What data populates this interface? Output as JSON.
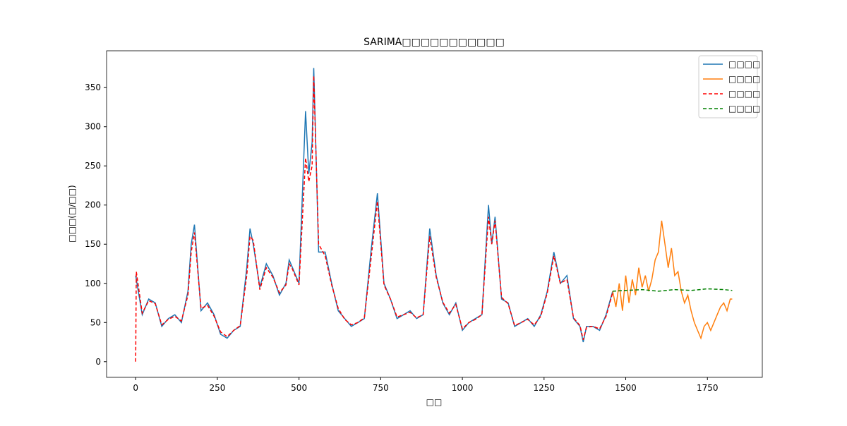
{
  "chart_data": {
    "type": "line",
    "title": "SARIMA□□□□□□□□□□□",
    "x_label": "□□",
    "y_label": "□□□(□/□□)",
    "xlim": [
      -89,
      1918
    ],
    "ylim": [
      -20,
      397
    ],
    "xticks": [
      0,
      250,
      500,
      750,
      1000,
      1250,
      1500,
      1750
    ],
    "yticks": [
      0,
      50,
      100,
      150,
      200,
      250,
      300,
      350
    ],
    "legend": "upper right",
    "series": [
      {
        "name": "□□□□",
        "color": "#1f77b4",
        "dashed": false,
        "x": [
          0,
          20,
          40,
          60,
          80,
          100,
          120,
          140,
          160,
          170,
          180,
          200,
          220,
          240,
          260,
          280,
          300,
          320,
          340,
          350,
          360,
          380,
          400,
          420,
          440,
          460,
          470,
          480,
          500,
          520,
          530,
          540,
          545,
          560,
          580,
          600,
          620,
          640,
          660,
          680,
          700,
          720,
          740,
          760,
          780,
          800,
          820,
          840,
          860,
          880,
          900,
          920,
          940,
          960,
          980,
          1000,
          1020,
          1040,
          1060,
          1080,
          1090,
          1100,
          1120,
          1140,
          1160,
          1180,
          1200,
          1220,
          1240,
          1260,
          1280,
          1300,
          1320,
          1340,
          1360,
          1370,
          1380,
          1400,
          1420,
          1440,
          1460
        ],
        "values": [
          110,
          60,
          80,
          75,
          45,
          55,
          60,
          50,
          90,
          150,
          175,
          65,
          75,
          60,
          35,
          30,
          40,
          45,
          120,
          170,
          150,
          95,
          125,
          110,
          85,
          100,
          130,
          120,
          100,
          320,
          240,
          280,
          375,
          140,
          140,
          100,
          65,
          55,
          45,
          50,
          55,
          140,
          215,
          100,
          80,
          55,
          60,
          65,
          55,
          60,
          170,
          110,
          75,
          60,
          75,
          40,
          50,
          55,
          60,
          200,
          150,
          185,
          80,
          75,
          45,
          50,
          55,
          45,
          60,
          90,
          140,
          100,
          110,
          55,
          45,
          25,
          45,
          45,
          40,
          60,
          90
        ]
      },
      {
        "name": "□□□□",
        "color": "#ff7f0e",
        "dashed": false,
        "x": [
          1460,
          1470,
          1480,
          1490,
          1500,
          1510,
          1520,
          1530,
          1540,
          1550,
          1560,
          1570,
          1580,
          1590,
          1600,
          1610,
          1620,
          1630,
          1640,
          1650,
          1660,
          1670,
          1680,
          1690,
          1700,
          1710,
          1720,
          1730,
          1740,
          1750,
          1760,
          1770,
          1780,
          1790,
          1800,
          1810,
          1820,
          1826
        ],
        "values": [
          90,
          70,
          100,
          65,
          110,
          75,
          105,
          85,
          120,
          95,
          110,
          90,
          105,
          130,
          140,
          180,
          150,
          120,
          145,
          110,
          115,
          90,
          75,
          85,
          65,
          50,
          40,
          30,
          45,
          50,
          40,
          50,
          60,
          70,
          75,
          65,
          80,
          80
        ]
      },
      {
        "name": "□□□□",
        "color": "#ff0000",
        "dashed": true,
        "x": [
          0,
          2,
          20,
          40,
          60,
          80,
          100,
          120,
          140,
          160,
          170,
          180,
          200,
          220,
          240,
          260,
          280,
          300,
          320,
          340,
          350,
          360,
          380,
          400,
          420,
          440,
          460,
          470,
          480,
          500,
          520,
          530,
          540,
          545,
          560,
          580,
          600,
          620,
          640,
          660,
          680,
          700,
          720,
          740,
          760,
          780,
          800,
          820,
          840,
          860,
          880,
          900,
          920,
          940,
          960,
          980,
          1000,
          1020,
          1040,
          1060,
          1080,
          1090,
          1100,
          1120,
          1140,
          1160,
          1180,
          1200,
          1220,
          1240,
          1260,
          1280,
          1300,
          1320,
          1340,
          1360,
          1370,
          1380,
          1400,
          1420,
          1440,
          1460
        ],
        "values": [
          0,
          115,
          62,
          78,
          74,
          47,
          54,
          58,
          52,
          85,
          140,
          165,
          68,
          72,
          58,
          38,
          32,
          40,
          46,
          110,
          160,
          155,
          92,
          120,
          108,
          88,
          98,
          125,
          118,
          98,
          260,
          230,
          250,
          365,
          150,
          135,
          98,
          68,
          54,
          47,
          50,
          56,
          130,
          205,
          98,
          80,
          57,
          60,
          63,
          56,
          60,
          160,
          108,
          76,
          62,
          73,
          42,
          50,
          54,
          60,
          185,
          150,
          180,
          82,
          74,
          46,
          50,
          54,
          47,
          58,
          88,
          135,
          100,
          105,
          56,
          46,
          28,
          44,
          45,
          42,
          58,
          88
        ]
      },
      {
        "name": "□□□□",
        "color": "#008000",
        "dashed": true,
        "x": [
          1460,
          1500,
          1550,
          1600,
          1650,
          1700,
          1750,
          1800,
          1826
        ],
        "values": [
          90,
          91,
          92,
          90,
          92,
          91,
          93,
          92,
          91
        ]
      }
    ]
  }
}
